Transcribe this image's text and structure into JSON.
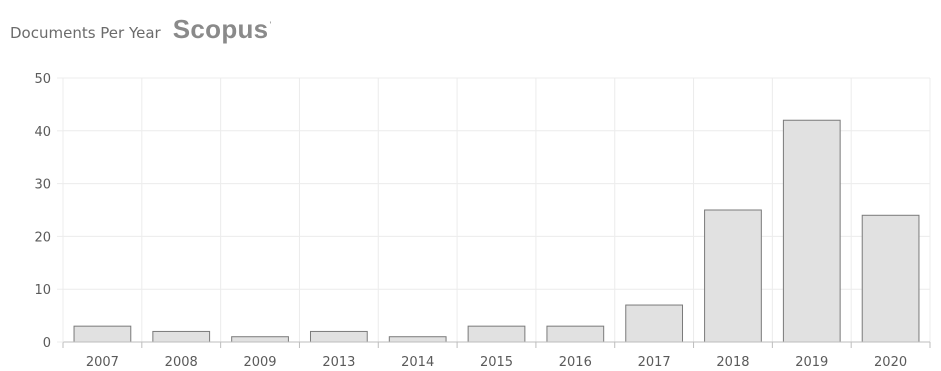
{
  "header": {
    "title": "Documents Per Year",
    "brand": "Scopus",
    "brand_mark": "'"
  },
  "colors": {
    "bar_fill": "#e1e1e1",
    "bar_stroke": "#7a7a7a",
    "grid": "#ececec",
    "axis": "#bdbdbd",
    "text": "#5a5a5a"
  },
  "chart_data": {
    "type": "bar",
    "title": "",
    "xlabel": "",
    "ylabel": "",
    "categories": [
      "2007",
      "2008",
      "2009",
      "2013",
      "2014",
      "2015",
      "2016",
      "2017",
      "2018",
      "2019",
      "2020"
    ],
    "values": [
      3,
      2,
      1,
      2,
      1,
      3,
      3,
      7,
      25,
      42,
      24
    ],
    "ylim": [
      0,
      50
    ],
    "yticks": [
      0,
      10,
      20,
      30,
      40,
      50
    ],
    "grid": true,
    "legend": "none"
  }
}
